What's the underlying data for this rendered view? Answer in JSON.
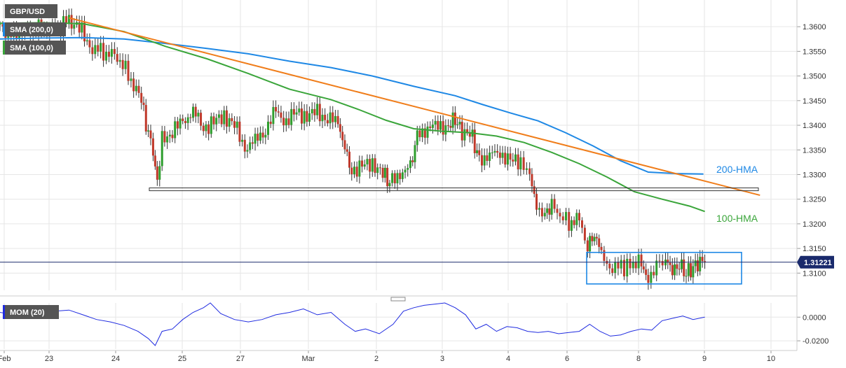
{
  "chart_data": [
    {
      "type": "candlestick",
      "symbol_tag": "GBP/USD",
      "indicator_tags": [
        "SMA (200,0)",
        "SMA (100,0)"
      ],
      "y_ticks": [
        "1.3600",
        "1.3550",
        "1.3500",
        "1.3450",
        "1.3400",
        "1.3350",
        "1.3300",
        "1.3250",
        "1.3200",
        "1.3150",
        "1.3100"
      ],
      "ylim": [
        1.3065,
        1.364
      ],
      "x_ticks": [
        "Feb",
        "23",
        "24",
        "25",
        "27",
        "Mar",
        "2",
        "3",
        "4",
        "6",
        "8",
        "9",
        "10"
      ],
      "xlim": [
        0,
        1120
      ],
      "last_price": "1.31221",
      "last_price_value": 1.31221,
      "colors": {
        "up": "#2e9e2e",
        "down": "#c0392b",
        "wick": "#333333",
        "hma200": "#1e88e5",
        "hma100": "#3aa53a",
        "trendline": "#f07d1a",
        "support": "#333333",
        "box": "#1e88e5",
        "price_line": "#1a2a6c",
        "grid": "#e6e6e6"
      },
      "series": [
        {
          "name": "200-HMA",
          "x": [
            0,
            60,
            120,
            180,
            240,
            300,
            360,
            420,
            480,
            540,
            600,
            660,
            700,
            740,
            780,
            820,
            860,
            900,
            940,
            980,
            1020
          ],
          "y": [
            1.3575,
            1.3577,
            1.3578,
            1.3575,
            1.3566,
            1.3556,
            1.3545,
            1.353,
            1.3517,
            1.35,
            1.3479,
            1.346,
            1.3442,
            1.3425,
            1.3409,
            1.3385,
            1.3358,
            1.3328,
            1.3305,
            1.3302,
            1.3301
          ]
        },
        {
          "name": "100-HMA",
          "x": [
            0,
            60,
            120,
            180,
            240,
            300,
            360,
            420,
            480,
            520,
            560,
            600,
            640,
            680,
            720,
            760,
            800,
            840,
            880,
            920,
            960,
            1000,
            1022
          ],
          "y": [
            1.3607,
            1.3608,
            1.3606,
            1.359,
            1.356,
            1.3535,
            1.3505,
            1.3473,
            1.3452,
            1.3432,
            1.341,
            1.3393,
            1.3388,
            1.3385,
            1.3378,
            1.3365,
            1.3345,
            1.3322,
            1.3295,
            1.3265,
            1.325,
            1.3236,
            1.3225
          ]
        }
      ],
      "trendline": {
        "x": [
          100,
          1102
        ],
        "y": [
          1.3618,
          1.3258
        ]
      },
      "support_level": {
        "value": 1.327,
        "x_range": [
          213,
          1082
        ]
      },
      "consolidation_box": {
        "x_range": [
          837,
          1058
        ],
        "y_range": [
          1.3078,
          1.3142
        ]
      },
      "candles_ohlc_sampled": [
        {
          "x": 0,
          "c": 1.3597
        },
        {
          "x": 20,
          "c": 1.3584
        },
        {
          "x": 40,
          "c": 1.3593
        },
        {
          "x": 60,
          "c": 1.3596
        },
        {
          "x": 80,
          "c": 1.3594
        },
        {
          "x": 100,
          "c": 1.3614
        },
        {
          "x": 115,
          "c": 1.3598
        },
        {
          "x": 130,
          "c": 1.356
        },
        {
          "x": 150,
          "c": 1.3548
        },
        {
          "x": 170,
          "c": 1.354
        },
        {
          "x": 190,
          "c": 1.3492
        },
        {
          "x": 205,
          "c": 1.3448
        },
        {
          "x": 215,
          "c": 1.3385
        },
        {
          "x": 222,
          "c": 1.3345
        },
        {
          "x": 228,
          "c": 1.3275
        },
        {
          "x": 235,
          "c": 1.337
        },
        {
          "x": 250,
          "c": 1.339
        },
        {
          "x": 265,
          "c": 1.3405
        },
        {
          "x": 280,
          "c": 1.343
        },
        {
          "x": 295,
          "c": 1.3395
        },
        {
          "x": 310,
          "c": 1.3405
        },
        {
          "x": 325,
          "c": 1.342
        },
        {
          "x": 340,
          "c": 1.34
        },
        {
          "x": 355,
          "c": 1.3355
        },
        {
          "x": 370,
          "c": 1.3365
        },
        {
          "x": 385,
          "c": 1.3395
        },
        {
          "x": 400,
          "c": 1.3425
        },
        {
          "x": 415,
          "c": 1.341
        },
        {
          "x": 430,
          "c": 1.3425
        },
        {
          "x": 445,
          "c": 1.342
        },
        {
          "x": 460,
          "c": 1.3425
        },
        {
          "x": 475,
          "c": 1.3415
        },
        {
          "x": 490,
          "c": 1.3405
        },
        {
          "x": 500,
          "c": 1.336
        },
        {
          "x": 510,
          "c": 1.331
        },
        {
          "x": 525,
          "c": 1.3315
        },
        {
          "x": 540,
          "c": 1.3325
        },
        {
          "x": 555,
          "c": 1.33
        },
        {
          "x": 565,
          "c": 1.3282
        },
        {
          "x": 580,
          "c": 1.3305
        },
        {
          "x": 595,
          "c": 1.331
        },
        {
          "x": 605,
          "c": 1.3375
        },
        {
          "x": 620,
          "c": 1.34
        },
        {
          "x": 635,
          "c": 1.3395
        },
        {
          "x": 650,
          "c": 1.34
        },
        {
          "x": 660,
          "c": 1.341
        },
        {
          "x": 670,
          "c": 1.3385
        },
        {
          "x": 685,
          "c": 1.3375
        },
        {
          "x": 695,
          "c": 1.333
        },
        {
          "x": 710,
          "c": 1.334
        },
        {
          "x": 725,
          "c": 1.3345
        },
        {
          "x": 740,
          "c": 1.3325
        },
        {
          "x": 755,
          "c": 1.333
        },
        {
          "x": 768,
          "c": 1.3305
        },
        {
          "x": 778,
          "c": 1.324
        },
        {
          "x": 790,
          "c": 1.3215
        },
        {
          "x": 800,
          "c": 1.3235
        },
        {
          "x": 812,
          "c": 1.322
        },
        {
          "x": 825,
          "c": 1.32
        },
        {
          "x": 840,
          "c": 1.3205
        },
        {
          "x": 852,
          "c": 1.3155
        },
        {
          "x": 862,
          "c": 1.3175
        },
        {
          "x": 872,
          "c": 1.314
        },
        {
          "x": 880,
          "c": 1.311
        },
        {
          "x": 892,
          "c": 1.3115
        },
        {
          "x": 905,
          "c": 1.3108
        },
        {
          "x": 918,
          "c": 1.3118
        },
        {
          "x": 930,
          "c": 1.312
        },
        {
          "x": 940,
          "c": 1.3092
        },
        {
          "x": 952,
          "c": 1.3115
        },
        {
          "x": 965,
          "c": 1.3125
        },
        {
          "x": 975,
          "c": 1.31
        },
        {
          "x": 985,
          "c": 1.3115
        },
        {
          "x": 995,
          "c": 1.3098
        },
        {
          "x": 1005,
          "c": 1.311
        },
        {
          "x": 1015,
          "c": 1.312
        },
        {
          "x": 1022,
          "c": 1.3122
        }
      ]
    },
    {
      "type": "line",
      "indicator_tag": "MOM (20)",
      "y_ticks": [
        "0.0000",
        "-0.0200"
      ],
      "ylim": [
        -0.027,
        0.012
      ],
      "line_color": "#1f2be0",
      "series": [
        {
          "name": "MOM (20)",
          "x": [
            0,
            20,
            40,
            60,
            80,
            100,
            120,
            140,
            160,
            180,
            200,
            215,
            225,
            235,
            250,
            265,
            280,
            295,
            305,
            320,
            340,
            360,
            380,
            400,
            420,
            440,
            460,
            480,
            500,
            515,
            530,
            550,
            570,
            585,
            600,
            615,
            630,
            645,
            660,
            675,
            690,
            705,
            720,
            735,
            750,
            765,
            780,
            795,
            810,
            825,
            840,
            855,
            870,
            885,
            900,
            915,
            930,
            945,
            960,
            975,
            990,
            1005,
            1022
          ],
          "y": [
            0.004,
            0.002,
            0.001,
            0.003,
            0.005,
            0.006,
            0.002,
            -0.002,
            -0.004,
            -0.007,
            -0.012,
            -0.018,
            -0.024,
            -0.012,
            -0.01,
            -0.002,
            0.004,
            0.008,
            0.012,
            0.003,
            -0.002,
            -0.004,
            -0.002,
            0.002,
            0.004,
            0.007,
            0.002,
            0.004,
            -0.006,
            -0.012,
            -0.01,
            -0.014,
            -0.006,
            0.005,
            0.008,
            0.01,
            0.011,
            0.012,
            0.008,
            0.002,
            -0.01,
            -0.006,
            -0.012,
            -0.008,
            -0.009,
            -0.012,
            -0.013,
            -0.012,
            -0.014,
            -0.013,
            -0.012,
            -0.006,
            -0.012,
            -0.016,
            -0.015,
            -0.012,
            -0.01,
            -0.011,
            -0.003,
            -0.001,
            0.001,
            -0.002,
            0.0
          ]
        }
      ]
    }
  ],
  "x_axis_labels": [
    "Feb",
    "23",
    "24",
    "25",
    "27",
    "Mar",
    "2",
    "3",
    "4",
    "6",
    "8",
    "9",
    "10"
  ],
  "annotations": {
    "hma200_label": "200-HMA",
    "hma100_label": "100-HMA"
  }
}
